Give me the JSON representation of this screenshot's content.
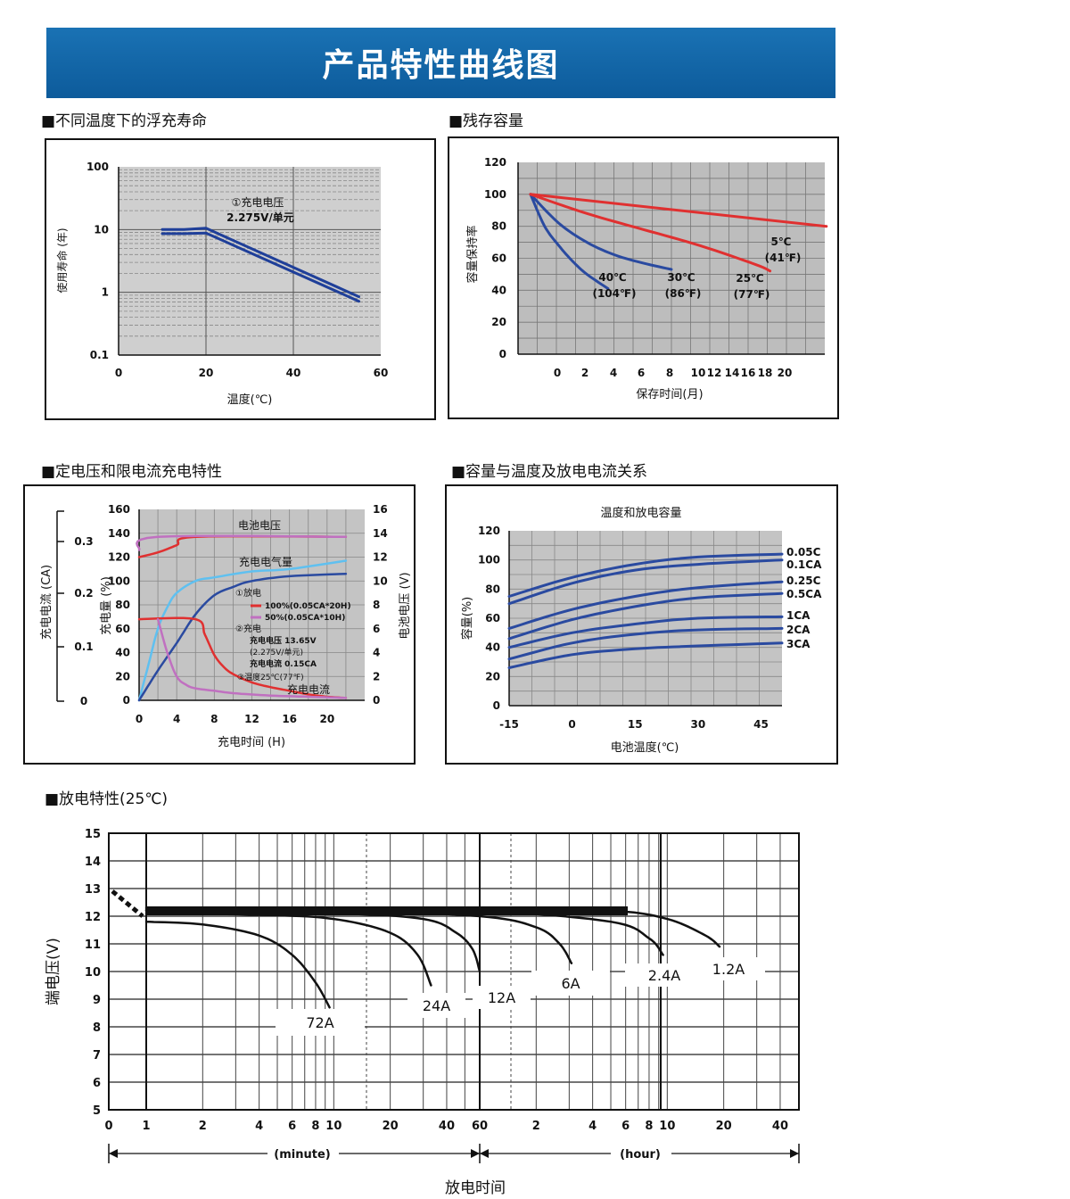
{
  "header": {
    "title": "产品特性曲线图"
  },
  "sections": {
    "float_life": "■不同温度下的浮充寿命",
    "residual": "■残存容量",
    "charging": "■定电压和限电流充电特性",
    "capacity_temp": "■容量与温度及放电电流关系",
    "discharge": "■放电特性(25℃)"
  },
  "chart_data": [
    {
      "id": "float_life",
      "type": "line",
      "xlabel": "温度(℃)",
      "ylabel": "使用寿命 (年)",
      "x_ticks": [
        "0",
        "20",
        "40",
        "60"
      ],
      "y_ticks": [
        "100",
        "10",
        "1",
        "0.1"
      ],
      "xlim": [
        0,
        60
      ],
      "ylim": [
        0.1,
        100
      ],
      "y_scale": "log",
      "annotation": [
        "①充电电压",
        "2.275V/单元"
      ],
      "series": [
        {
          "color": "#1f3f99",
          "x": [
            10,
            15,
            20,
            55
          ],
          "y": [
            10,
            10,
            10.5,
            0.85
          ]
        },
        {
          "color": "#1f3f99",
          "x": [
            10,
            15,
            20,
            55
          ],
          "y": [
            8.6,
            8.6,
            8.8,
            0.72
          ]
        }
      ]
    },
    {
      "id": "residual",
      "type": "line",
      "xlabel": "保存时间(月)",
      "ylabel": "容量保持率",
      "ylim": [
        0,
        120
      ],
      "y_ticks": [
        "120",
        "100",
        "80",
        "60",
        "40",
        "20",
        "0"
      ],
      "x_ticks": [
        "0",
        "2",
        "4",
        "6",
        "8",
        "10",
        "12",
        "14",
        "16",
        "18",
        "20"
      ],
      "series": [
        {
          "label": [
            "40℃",
            "(104℉)"
          ],
          "color": "#2a4aa0",
          "x": [
            0,
            1,
            2,
            3,
            4,
            5.5
          ],
          "y": [
            100,
            80,
            68,
            58,
            50,
            41
          ]
        },
        {
          "label": [
            "30℃",
            "(86℉)"
          ],
          "color": "#2a4aa0",
          "x": [
            0,
            2,
            4,
            6,
            8,
            10
          ],
          "y": [
            100,
            82,
            70,
            62,
            57,
            53
          ]
        },
        {
          "label": [
            "25℃",
            "(77℉)"
          ],
          "color": "#e03030",
          "x": [
            0,
            4,
            8,
            12,
            16,
            17
          ],
          "y": [
            100,
            88,
            78,
            68,
            56,
            52
          ]
        },
        {
          "label": [
            "5℃",
            "(41℉)"
          ],
          "color": "#e03030",
          "x": [
            0,
            21
          ],
          "y": [
            100,
            80
          ]
        }
      ]
    },
    {
      "id": "charging",
      "type": "line",
      "xlabel": "充电时间 (H)",
      "ylabel_capacity": "充电量 (%)",
      "ylabel_voltage": "电池电压 (V)",
      "ylabel_current": "充电电流 (CA)",
      "x_ticks": [
        "0",
        "4",
        "8",
        "12",
        "16",
        "20"
      ],
      "capacity_ticks": [
        "160",
        "140",
        "120",
        "100",
        "80",
        "60",
        "40",
        "20",
        "0"
      ],
      "voltage_ticks": [
        "16",
        "14",
        "12",
        "10",
        "8",
        "6",
        "4",
        "2",
        "0"
      ],
      "current_ticks": [
        "0.3",
        "0.2",
        "0.1",
        "0"
      ],
      "curve_labels": {
        "voltage": "电池电压",
        "charged": "充电电气量",
        "current": "充电电流"
      },
      "legend": [
        "①放电",
        "100%(0.05CA*20H)",
        "50%(0.05CA*10H)",
        "②充电",
        "充电电压  13.65V",
        "(2.275V/单元)",
        "充电电流  0.15CA",
        "③温度25℃(77℉)"
      ],
      "series": [
        {
          "name": "电池电压",
          "color": "#e03030",
          "x": [
            0,
            2,
            4,
            6,
            22
          ],
          "y": [
            120,
            124,
            130,
            137,
            137
          ]
        },
        {
          "name": "电池电压",
          "color": "#c070c0",
          "x": [
            0,
            2,
            22
          ],
          "y": [
            126,
            137,
            137
          ]
        },
        {
          "name": "充电电气量",
          "color": "#5fc0f0",
          "x": [
            0,
            1,
            2,
            3,
            4,
            6,
            8,
            12,
            16,
            22
          ],
          "y": [
            0,
            30,
            60,
            78,
            90,
            100,
            103,
            108,
            110,
            117
          ]
        },
        {
          "name": "充电电气量",
          "color": "#2a4aa0",
          "x": [
            0,
            2,
            4,
            6,
            8,
            10,
            12,
            16,
            22
          ],
          "y": [
            0,
            25,
            48,
            72,
            88,
            95,
            100,
            104,
            106
          ]
        },
        {
          "name": "充电电流",
          "color": "#e03030",
          "x": [
            0,
            6,
            7,
            8,
            9,
            10,
            12,
            14,
            16,
            18,
            20,
            22
          ],
          "y": [
            68,
            68,
            55,
            38,
            28,
            22,
            15,
            11,
            8,
            5,
            3,
            2
          ]
        },
        {
          "name": "充电电流",
          "color": "#c070c0",
          "x": [
            2,
            3,
            4,
            5,
            6,
            8,
            10,
            14,
            18,
            22
          ],
          "y": [
            68,
            40,
            20,
            13,
            10,
            8,
            6,
            4,
            3,
            2
          ]
        }
      ]
    },
    {
      "id": "capacity_temp",
      "type": "line",
      "title": "温度和放电容量",
      "xlabel": "电池温度(℃)",
      "ylabel": "容量(%)",
      "xlim": [
        -15,
        50
      ],
      "ylim": [
        0,
        120
      ],
      "x_ticks": [
        "-15",
        "0",
        "15",
        "30",
        "45"
      ],
      "y_ticks": [
        "120",
        "100",
        "80",
        "60",
        "40",
        "20",
        "0"
      ],
      "series": [
        {
          "name": "0.05C",
          "x": [
            -15,
            0,
            15,
            30,
            50
          ],
          "y": [
            75,
            88,
            97,
            102,
            104
          ]
        },
        {
          "name": "0.1CA",
          "x": [
            -15,
            0,
            15,
            30,
            50
          ],
          "y": [
            70,
            84,
            93,
            97,
            100
          ]
        },
        {
          "name": "0.25C",
          "x": [
            -15,
            0,
            15,
            30,
            50
          ],
          "y": [
            53,
            66,
            75,
            81,
            85
          ]
        },
        {
          "name": "0.5CA",
          "x": [
            -15,
            0,
            15,
            30,
            50
          ],
          "y": [
            46,
            59,
            68,
            74,
            77
          ]
        },
        {
          "name": "1CA",
          "x": [
            -15,
            0,
            15,
            30,
            50
          ],
          "y": [
            40,
            50,
            56,
            60,
            61
          ]
        },
        {
          "name": "2CA",
          "x": [
            -15,
            0,
            15,
            30,
            50
          ],
          "y": [
            32,
            43,
            49,
            52,
            53
          ]
        },
        {
          "name": "3CA",
          "x": [
            -15,
            0,
            15,
            30,
            50
          ],
          "y": [
            26,
            35,
            39,
            41,
            43
          ]
        }
      ]
    },
    {
      "id": "discharge",
      "type": "line",
      "xlabel": "放电时间",
      "ylabel": "端电压(V)",
      "ylim": [
        5,
        15
      ],
      "y_ticks": [
        "15",
        "14",
        "13",
        "12",
        "11",
        "10",
        "9",
        "8",
        "7",
        "6",
        "5"
      ],
      "x_scale": "log",
      "x_unit": "minute",
      "x_ticks": [
        "0",
        "1",
        "2",
        "4",
        "6",
        "8",
        "10",
        "20",
        "40",
        "60",
        "2",
        "4",
        "6",
        "8",
        "10",
        "20",
        "40"
      ],
      "range_labels": [
        "(minute)",
        "(hour)"
      ],
      "series": [
        {
          "name": "72A",
          "x": [
            1,
            2,
            4,
            6,
            8,
            9.5
          ],
          "y": [
            11.8,
            11.7,
            11.3,
            10.6,
            9.6,
            8.7
          ]
        },
        {
          "name": "24A",
          "x": [
            1,
            4,
            10,
            20,
            28,
            33
          ],
          "y": [
            12.1,
            12.05,
            11.9,
            11.4,
            10.6,
            9.5
          ]
        },
        {
          "name": "12A",
          "x": [
            1,
            10,
            30,
            45,
            55,
            60
          ],
          "y": [
            12.2,
            12.1,
            11.9,
            11.4,
            10.8,
            10.0
          ]
        },
        {
          "name": "6A",
          "x": [
            1,
            10,
            60,
            120,
            160,
            185
          ],
          "y": [
            12.2,
            12.2,
            12.0,
            11.6,
            11.0,
            10.3
          ]
        },
        {
          "name": "2.4A",
          "x": [
            1,
            10,
            60,
            300,
            480,
            570
          ],
          "y": [
            12.25,
            12.25,
            12.2,
            11.8,
            11.2,
            10.6
          ]
        },
        {
          "name": "1.2A",
          "x": [
            1,
            10,
            60,
            300,
            600,
            960,
            1140
          ],
          "y": [
            12.3,
            12.3,
            12.3,
            12.2,
            11.9,
            11.3,
            10.9
          ]
        }
      ]
    }
  ]
}
